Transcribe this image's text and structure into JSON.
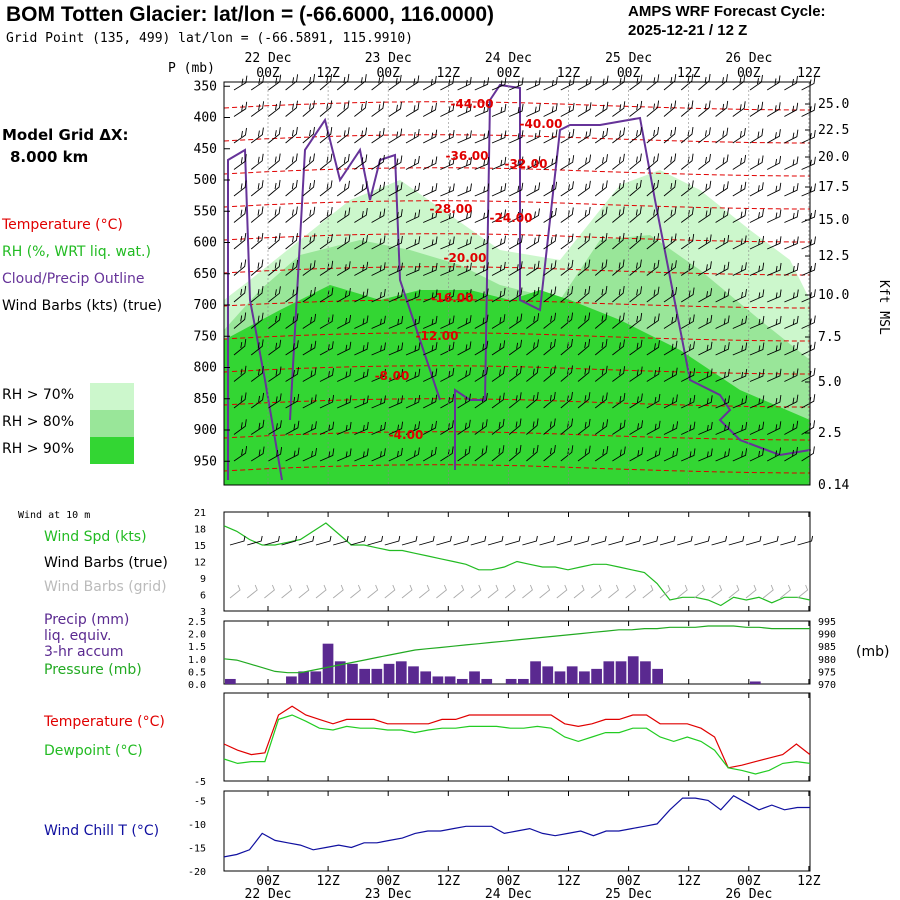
{
  "header": {
    "title": "BOM Totten Glacier:  lat/lon = (-66.6000, 116.0000)",
    "grid_point": "Grid Point (135, 499) lat/lon = (-66.5891, 115.9910)",
    "cycle_line1": "AMPS WRF Forecast Cycle:",
    "cycle_line2": "2025-12-21 / 12  Z"
  },
  "left_panel": {
    "model_grid_line1": "Model Grid ΔX:",
    "model_grid_line2": "8.000 km",
    "legend_temperature": "Temperature (°C)",
    "legend_rh": "RH (%, WRT liq. wat.)",
    "legend_cloud": "Cloud/Precip Outline",
    "legend_wind": "Wind Barbs (kts) (true)",
    "rh_70": "RH > 70%",
    "rh_80": "RH > 80%",
    "rh_90": "RH > 90%"
  },
  "colors": {
    "rh70": "#ccf7cc",
    "rh80": "#99e699",
    "rh90": "#33d633",
    "temperature": "#e00000",
    "dewpoint": "#22cc22",
    "cloud": "#663399",
    "wind_spd": "#22bb22",
    "precip": "#5a2990",
    "pressure": "#22aa22",
    "windchill": "#1010a0",
    "barb_grid": "#aaaaaa"
  },
  "chart_data": [
    {
      "id": "sounding",
      "type": "heatmap",
      "xlabel_top": "P (mb)",
      "ylabel_right": "Kft MSL",
      "pressure_ticks": [
        350,
        400,
        450,
        500,
        550,
        600,
        650,
        700,
        750,
        800,
        850,
        900,
        950
      ],
      "kft_ticks": [
        "25.0",
        "22.5",
        "20.0",
        "17.5",
        "15.0",
        "12.5",
        "10.0",
        "7.5",
        "5.0",
        "2.5",
        "0.14"
      ],
      "time_ticks": [
        "00Z",
        "12Z",
        "00Z",
        "12Z",
        "00Z",
        "12Z",
        "00Z",
        "12Z",
        "00Z",
        "12Z"
      ],
      "date_labels": [
        "22 Dec",
        "23 Dec",
        "24 Dec",
        "25 Dec",
        "26 Dec"
      ],
      "temperature_labels": [
        "-44.00",
        "-40.00",
        "-36.00",
        "-32.00",
        "-28.00",
        "-24.00",
        "-20.00",
        "-16.00",
        "-12.00",
        "-8.00",
        "-4.00"
      ]
    },
    {
      "id": "wind10m",
      "type": "line",
      "title": "Wind at 10 m",
      "series_name": "Wind Spd (kts)",
      "barbs_true": "Wind Barbs (true)",
      "barbs_grid": "Wind Barbs (grid)",
      "yticks": [
        3,
        6,
        9,
        12,
        15,
        18,
        21
      ],
      "ylim": [
        3,
        21
      ],
      "values": [
        18.5,
        17.5,
        16,
        15,
        15,
        15.5,
        16,
        17.5,
        19,
        17,
        15,
        15,
        14.5,
        14,
        14,
        13.5,
        13,
        12.5,
        12,
        11.5,
        10.5,
        10.5,
        11,
        12,
        11.5,
        11,
        11,
        10.5,
        11,
        11.5,
        11.5,
        11,
        10.5,
        10,
        8,
        5,
        5.5,
        5.5,
        5,
        4,
        5.5,
        5,
        5.5,
        4.5,
        5.5,
        5.5,
        5
      ]
    },
    {
      "id": "precip_pressure",
      "type": "bar",
      "label_precip": "Precip (mm)",
      "label_equiv": "liq. equiv.",
      "label_accum": "3-hr accum",
      "label_pressure": "Pressure (mb)",
      "units_right": "(mb)",
      "yticks_left": [
        "0.0",
        "0.5",
        "1.0",
        "1.5",
        "2.0",
        "2.5"
      ],
      "yticks_right": [
        970,
        975,
        980,
        985,
        990,
        995
      ],
      "precip": [
        0.2,
        0,
        0,
        0,
        0,
        0.3,
        0.5,
        0.5,
        1.6,
        0.9,
        0.8,
        0.6,
        0.6,
        0.8,
        0.9,
        0.7,
        0.5,
        0.3,
        0.3,
        0.2,
        0.5,
        0.2,
        0,
        0.2,
        0.2,
        0.9,
        0.7,
        0.5,
        0.7,
        0.5,
        0.6,
        0.9,
        0.9,
        1.1,
        0.9,
        0.6,
        0,
        0,
        0,
        0,
        0,
        0,
        0,
        0.1,
        0,
        0,
        0,
        0
      ],
      "pressure": [
        980,
        979.5,
        978,
        976.5,
        975,
        974.5,
        974.5,
        975.5,
        976.5,
        977.5,
        978.5,
        979.5,
        980.5,
        981.5,
        982.5,
        983.5,
        984,
        984.5,
        985,
        985.5,
        986,
        986.5,
        987,
        987.5,
        988,
        988.5,
        989,
        989.5,
        990,
        990.5,
        991,
        991.5,
        991.5,
        992,
        992,
        992.5,
        992.5,
        992.5,
        993,
        993,
        993,
        992.5,
        992.5,
        992,
        992,
        992,
        992
      ]
    },
    {
      "id": "temp_dew",
      "type": "line",
      "label_temperature": "Temperature (°C)",
      "label_dewpoint": "Dewpoint (°C)",
      "ytick_bottom": "-5",
      "ylim": [
        -5,
        5
      ],
      "temperature": [
        -0.8,
        -1.5,
        -2,
        -1.8,
        2.5,
        3.5,
        2.5,
        2,
        1.5,
        2,
        2,
        2,
        1.5,
        1.5,
        1.5,
        1.5,
        2,
        2,
        2.5,
        2.5,
        2.5,
        2.5,
        2.5,
        2.5,
        2.5,
        1.5,
        1.2,
        1.5,
        2,
        2,
        2.5,
        2.5,
        1.5,
        1.5,
        1.5,
        1,
        0,
        -3.5,
        -3.2,
        -2.8,
        -2.4,
        -2,
        -0.8,
        -2
      ],
      "dewpoint": [
        -2.5,
        -3,
        -2.8,
        -2.8,
        2,
        2.5,
        1.8,
        1,
        0.8,
        1.2,
        1,
        1,
        0.8,
        0.8,
        0.5,
        0.8,
        1,
        1,
        1.2,
        1.2,
        1.2,
        1,
        1,
        1.2,
        1,
        0,
        -0.5,
        0,
        0.5,
        0.5,
        1,
        1,
        0,
        -0.5,
        0,
        -0.5,
        -1.5,
        -3.5,
        -3.8,
        -4.2,
        -3.8,
        -3,
        -2.8,
        -3
      ]
    },
    {
      "id": "windchill",
      "type": "line",
      "label": "Wind Chill T (°C)",
      "yticks": [
        -5,
        -10,
        -15,
        -20
      ],
      "ylim": [
        -20,
        -3
      ],
      "values": [
        -17,
        -16.5,
        -15.5,
        -12,
        -13.5,
        -14,
        -14.5,
        -15.5,
        -15,
        -14.5,
        -15,
        -14,
        -14,
        -13.5,
        -13,
        -12,
        -11.5,
        -11.5,
        -11,
        -10.5,
        -10.5,
        -10.5,
        -12,
        -11.5,
        -11,
        -12,
        -12.5,
        -12,
        -11.5,
        -12.5,
        -11.5,
        -11.5,
        -11,
        -10.5,
        -10,
        -7,
        -4.5,
        -4.5,
        -5,
        -7,
        -4,
        -5.5,
        -7,
        -6,
        -7,
        -6.5,
        -6.5
      ]
    }
  ]
}
